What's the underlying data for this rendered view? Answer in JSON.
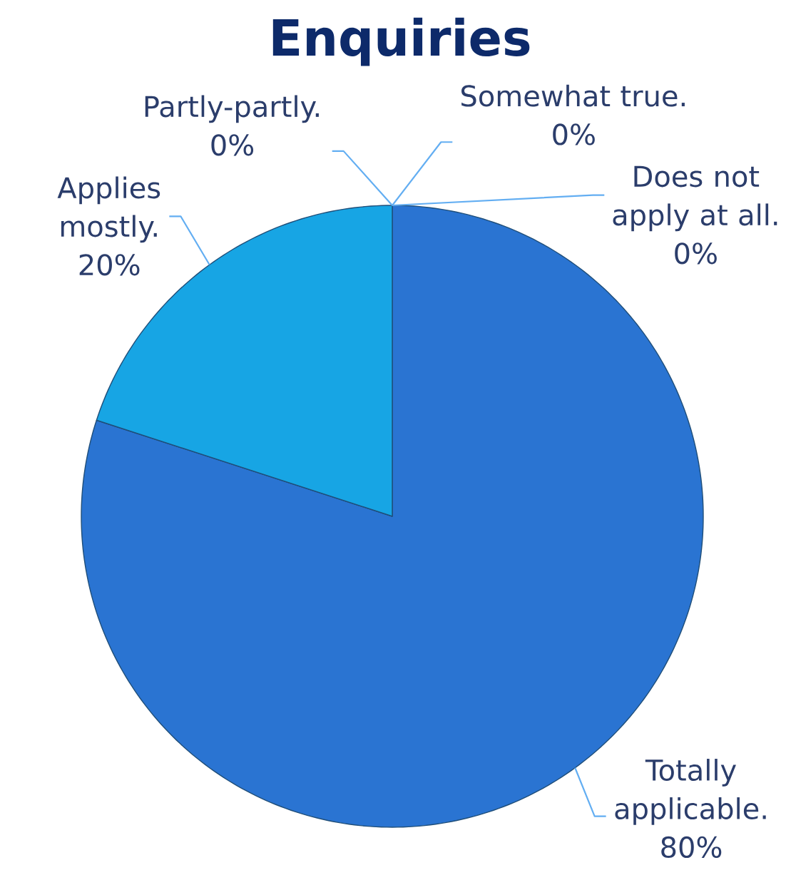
{
  "chart_data": {
    "type": "pie",
    "title": "Enquiries",
    "categories": [
      "Totally applicable.",
      "Applies mostly.",
      "Partly-partly.",
      "Somewhat true.",
      "Does not apply at all."
    ],
    "values": [
      80,
      20,
      0,
      0,
      0
    ],
    "value_labels": [
      "80%",
      "20%",
      "0%",
      "0%",
      "0%"
    ],
    "colors": [
      "#2a74d2",
      "#17a5e4",
      null,
      null,
      null
    ]
  }
}
